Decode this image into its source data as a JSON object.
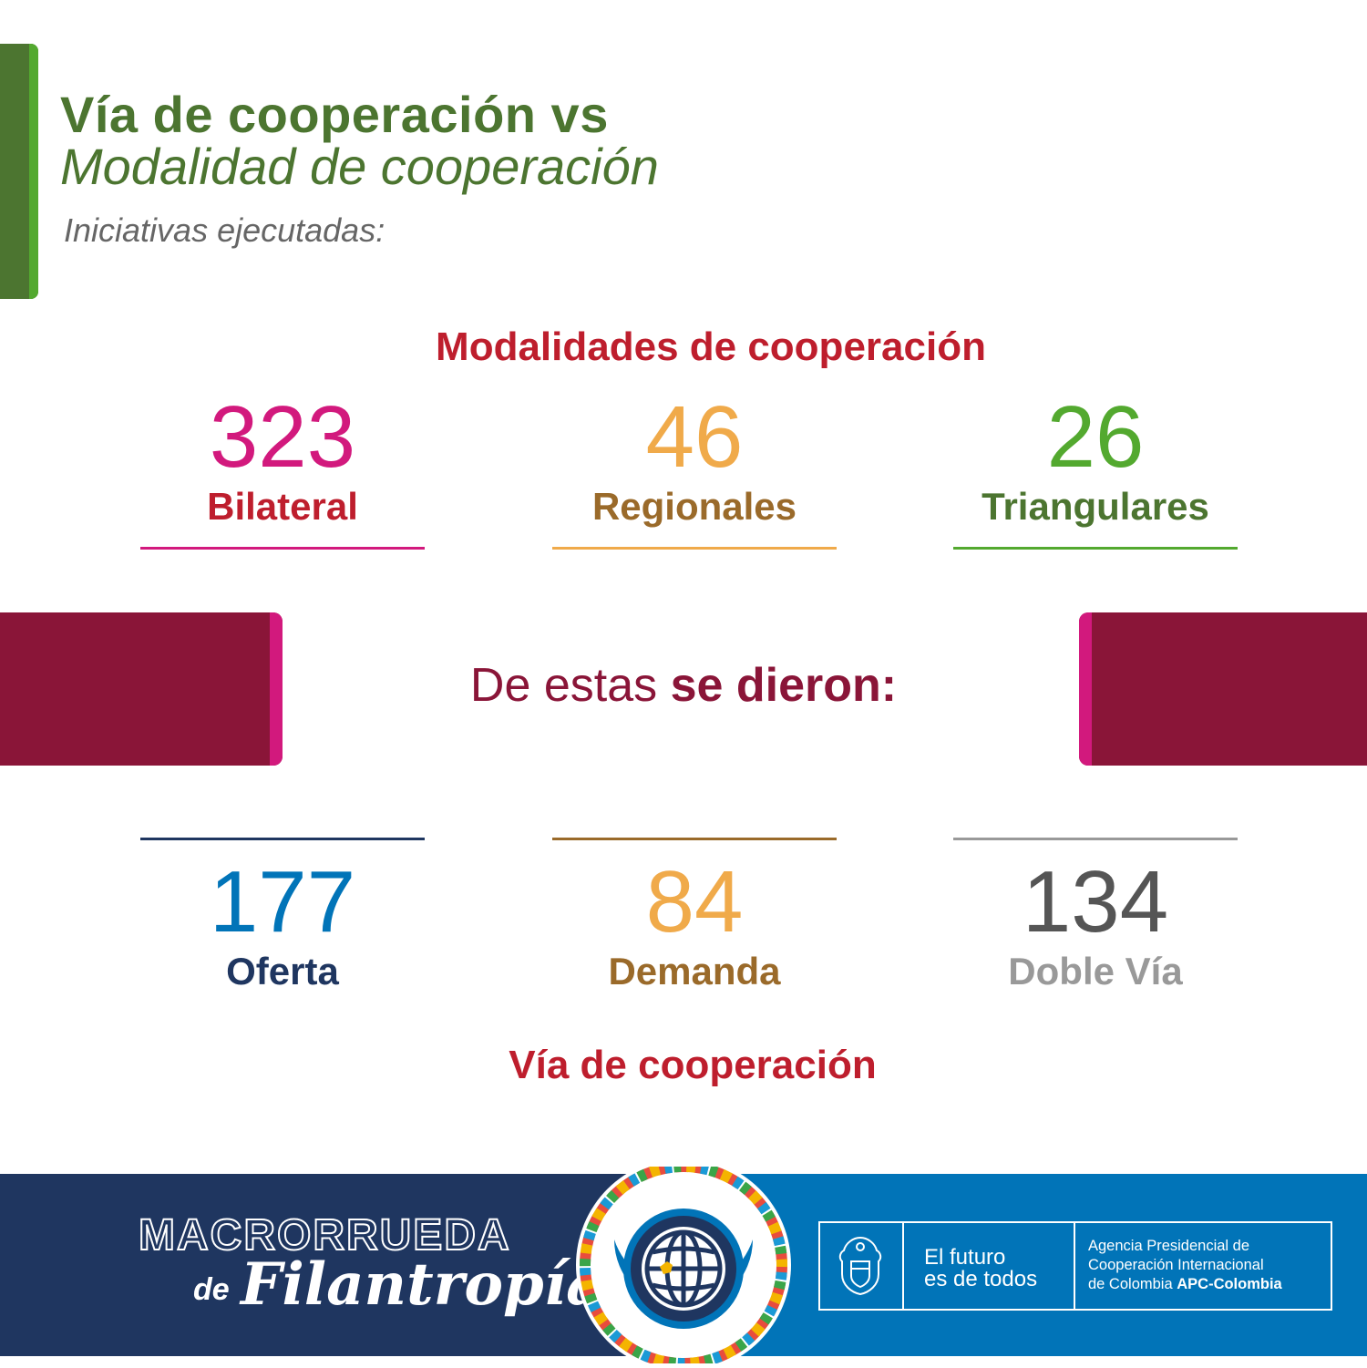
{
  "header": {
    "title_line1": "Vía de cooperación vs",
    "title_line2": "Modalidad de cooperación",
    "subtitle": "Iniciativas ejecutadas:"
  },
  "modalidades": {
    "heading": "Modalidades de cooperación",
    "items": [
      {
        "value": "323",
        "label": "Bilateral",
        "number_color": "#d2197d",
        "label_color": "#be1e2d",
        "rule_color": "#d2197d"
      },
      {
        "value": "46",
        "label": "Regionales",
        "number_color": "#f0aa4a",
        "label_color": "#9a6a2a",
        "rule_color": "#f0aa4a"
      },
      {
        "value": "26",
        "label": "Triangulares",
        "number_color": "#53a92f",
        "label_color": "#4c7530",
        "rule_color": "#53a92f"
      }
    ]
  },
  "band": {
    "text_normal": "De estas ",
    "text_bold": "se dieron:"
  },
  "vias": {
    "heading": "Vía de cooperación",
    "items": [
      {
        "value": "177",
        "label": "Oferta",
        "number_color": "#0174b8",
        "label_color": "#1f3660",
        "rule_color": "#1f3660"
      },
      {
        "value": "84",
        "label": "Demanda",
        "number_color": "#f0aa4a",
        "label_color": "#9a6a2a",
        "rule_color": "#9a6a2a"
      },
      {
        "value": "134",
        "label": "Doble Vía",
        "number_color": "#555555",
        "label_color": "#999999",
        "rule_color": "#999999"
      }
    ]
  },
  "footer": {
    "brand_line1": "MACRORRUEDA",
    "brand_de": "de",
    "brand_line2": "Filantropía",
    "slogan_line1": "El futuro",
    "slogan_line2": "es de todos",
    "agency_line1": "Agencia Presidencial de",
    "agency_line2": "Cooperación Internacional",
    "agency_line3_normal": "de Colombia ",
    "agency_line3_bold": "APC-Colombia",
    "colors": {
      "left": "#1f3660",
      "right": "#0174b8"
    }
  },
  "icons": [
    "globe-emblem-icon",
    "coat-of-arms-icon"
  ]
}
